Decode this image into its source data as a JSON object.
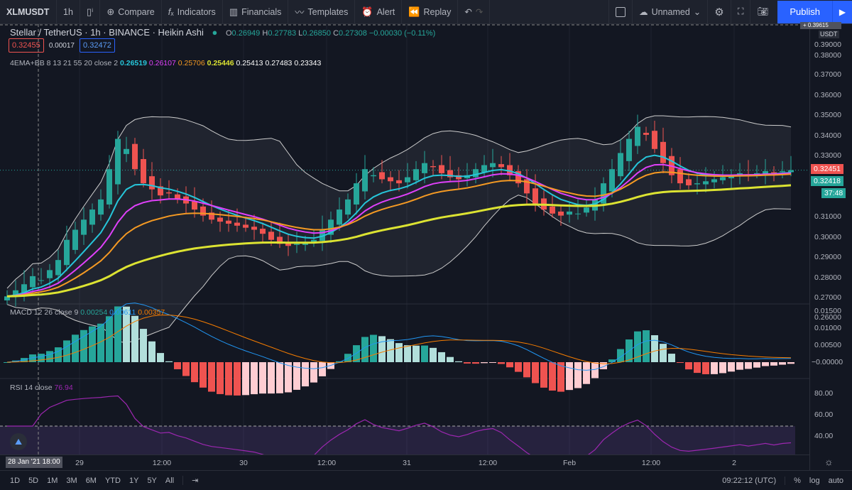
{
  "toolbar": {
    "symbol": "XLMUSDT",
    "interval": "1h",
    "compare": "Compare",
    "indicators": "Indicators",
    "financials": "Financials",
    "templates": "Templates",
    "alert": "Alert",
    "replay": "Replay",
    "layout_name": "Unnamed",
    "publish": "Publish"
  },
  "legend": {
    "title": "Stellar / TetherUS · 1h · BINANCE · Heikin Ashi",
    "o_label": "O",
    "o": "0.26949",
    "h_label": "H",
    "h": "0.27783",
    "l_label": "L",
    "l": "0.26850",
    "c_label": "C",
    "c": "0.27308",
    "change": "−0.00030 (−0.11%)",
    "bid": "0.32455",
    "spread": "0.00017",
    "ask": "0.32472"
  },
  "ema": {
    "name": "4EMA+BB 8 13 21 55 20 close 2",
    "v1": "0.26519",
    "v2": "0.26107",
    "v3": "0.25706",
    "v4": "0.25446",
    "v5": "0.25413",
    "v6": "0.27483",
    "v7": "0.23343"
  },
  "macd": {
    "name": "MACD 12 26 close 9",
    "v1": "0.00254",
    "v2": "0.00611",
    "v3": "0.00357"
  },
  "rsi": {
    "name": "RSI 14 close",
    "v": "76.94"
  },
  "price_axis": {
    "currency": "USDT",
    "top": "0.39615",
    "labels": [
      "0.39000",
      "0.38000",
      "0.37000",
      "0.36000",
      "0.35000",
      "0.34000",
      "0.33000",
      "0.31000",
      "0.30000",
      "0.29000",
      "0.28000",
      "0.27000",
      "0.26000"
    ],
    "last_price": "0.32451",
    "ema_price": "0.32418",
    "countdown": "37:48"
  },
  "macd_axis": [
    "0.01500",
    "0.01000",
    "0.00500",
    "−0.00000"
  ],
  "rsi_axis": [
    "80.00",
    "60.00",
    "40.00"
  ],
  "time_axis": {
    "crosshair": "28 Jan '21   18:00",
    "labels": [
      "29",
      "12:00",
      "30",
      "12:00",
      "31",
      "12:00",
      "Feb",
      "12:00",
      "2"
    ]
  },
  "bottom": {
    "ranges": [
      "1D",
      "5D",
      "1M",
      "3M",
      "6M",
      "YTD",
      "1Y",
      "5Y",
      "All"
    ],
    "clock": "09:22:12 (UTC)",
    "pct": "%",
    "log": "log",
    "auto": "auto"
  },
  "colors": {
    "up": "#26a69a",
    "down": "#ef5350",
    "ema8": "#26c6da",
    "ema13": "#e040fb",
    "ema21": "#f59a23",
    "ema55": "#dce332",
    "accent": "#2962ff"
  },
  "chart_data": {
    "type": "candlestick",
    "style": "Heikin Ashi",
    "close": [
      0.262,
      0.265,
      0.268,
      0.272,
      0.27,
      0.275,
      0.28,
      0.29,
      0.295,
      0.3,
      0.305,
      0.31,
      0.325,
      0.34,
      0.335,
      0.325,
      0.318,
      0.315,
      0.312,
      0.313,
      0.31,
      0.308,
      0.305,
      0.302,
      0.3,
      0.299,
      0.298,
      0.297,
      0.296,
      0.295,
      0.293,
      0.29,
      0.288,
      0.287,
      0.288,
      0.289,
      0.29,
      0.295,
      0.3,
      0.305,
      0.31,
      0.318,
      0.325,
      0.322,
      0.32,
      0.319,
      0.318,
      0.321,
      0.325,
      0.328,
      0.326,
      0.323,
      0.321,
      0.32,
      0.322,
      0.325,
      0.327,
      0.328,
      0.326,
      0.322,
      0.318,
      0.313,
      0.308,
      0.305,
      0.303,
      0.302,
      0.304,
      0.303,
      0.306,
      0.31,
      0.318,
      0.325,
      0.333,
      0.34,
      0.346,
      0.342,
      0.335,
      0.328,
      0.322,
      0.318,
      0.317,
      0.318,
      0.319,
      0.32,
      0.321,
      0.322,
      0.323,
      0.322,
      0.323,
      0.324,
      0.323,
      0.324,
      0.3245
    ],
    "ylim": [
      0.26,
      0.396
    ]
  }
}
